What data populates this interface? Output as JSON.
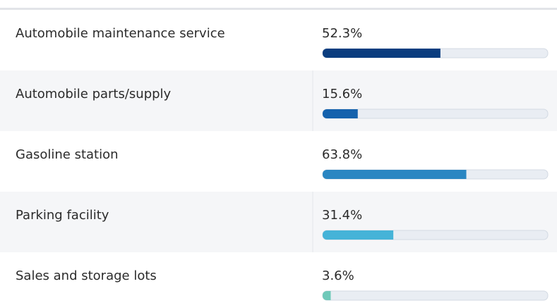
{
  "chart_data": {
    "type": "bar",
    "categories": [
      "Automobile maintenance service",
      "Automobile parts/supply",
      "Gasoline station",
      "Parking facility",
      "Sales and storage lots"
    ],
    "values": [
      52.3,
      15.6,
      63.8,
      31.4,
      3.6
    ],
    "value_labels": [
      "52.3%",
      "15.6%",
      "63.8%",
      "31.4%",
      "3.6%"
    ],
    "colors": [
      "#0b3d7f",
      "#1462ad",
      "#2a86c2",
      "#45b3d8",
      "#6fc9b9"
    ],
    "xlim": [
      0,
      100
    ]
  }
}
